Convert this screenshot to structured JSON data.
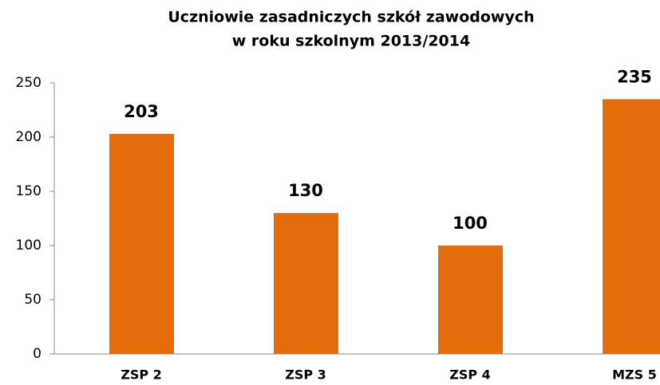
{
  "chart_data": {
    "type": "bar",
    "title": [
      "Uczniowie zasadniczych szkół zawodowych",
      "w roku szkolnym 2013/2014"
    ],
    "categories": [
      "ZSP 2",
      "ZSP 3",
      "ZSP 4",
      "MZS 5"
    ],
    "values": [
      203,
      130,
      100,
      235
    ],
    "color": "#e46c0a",
    "ylim": [
      0,
      250
    ],
    "yticks": [
      0,
      50,
      100,
      150,
      200,
      250
    ],
    "grid": false
  }
}
